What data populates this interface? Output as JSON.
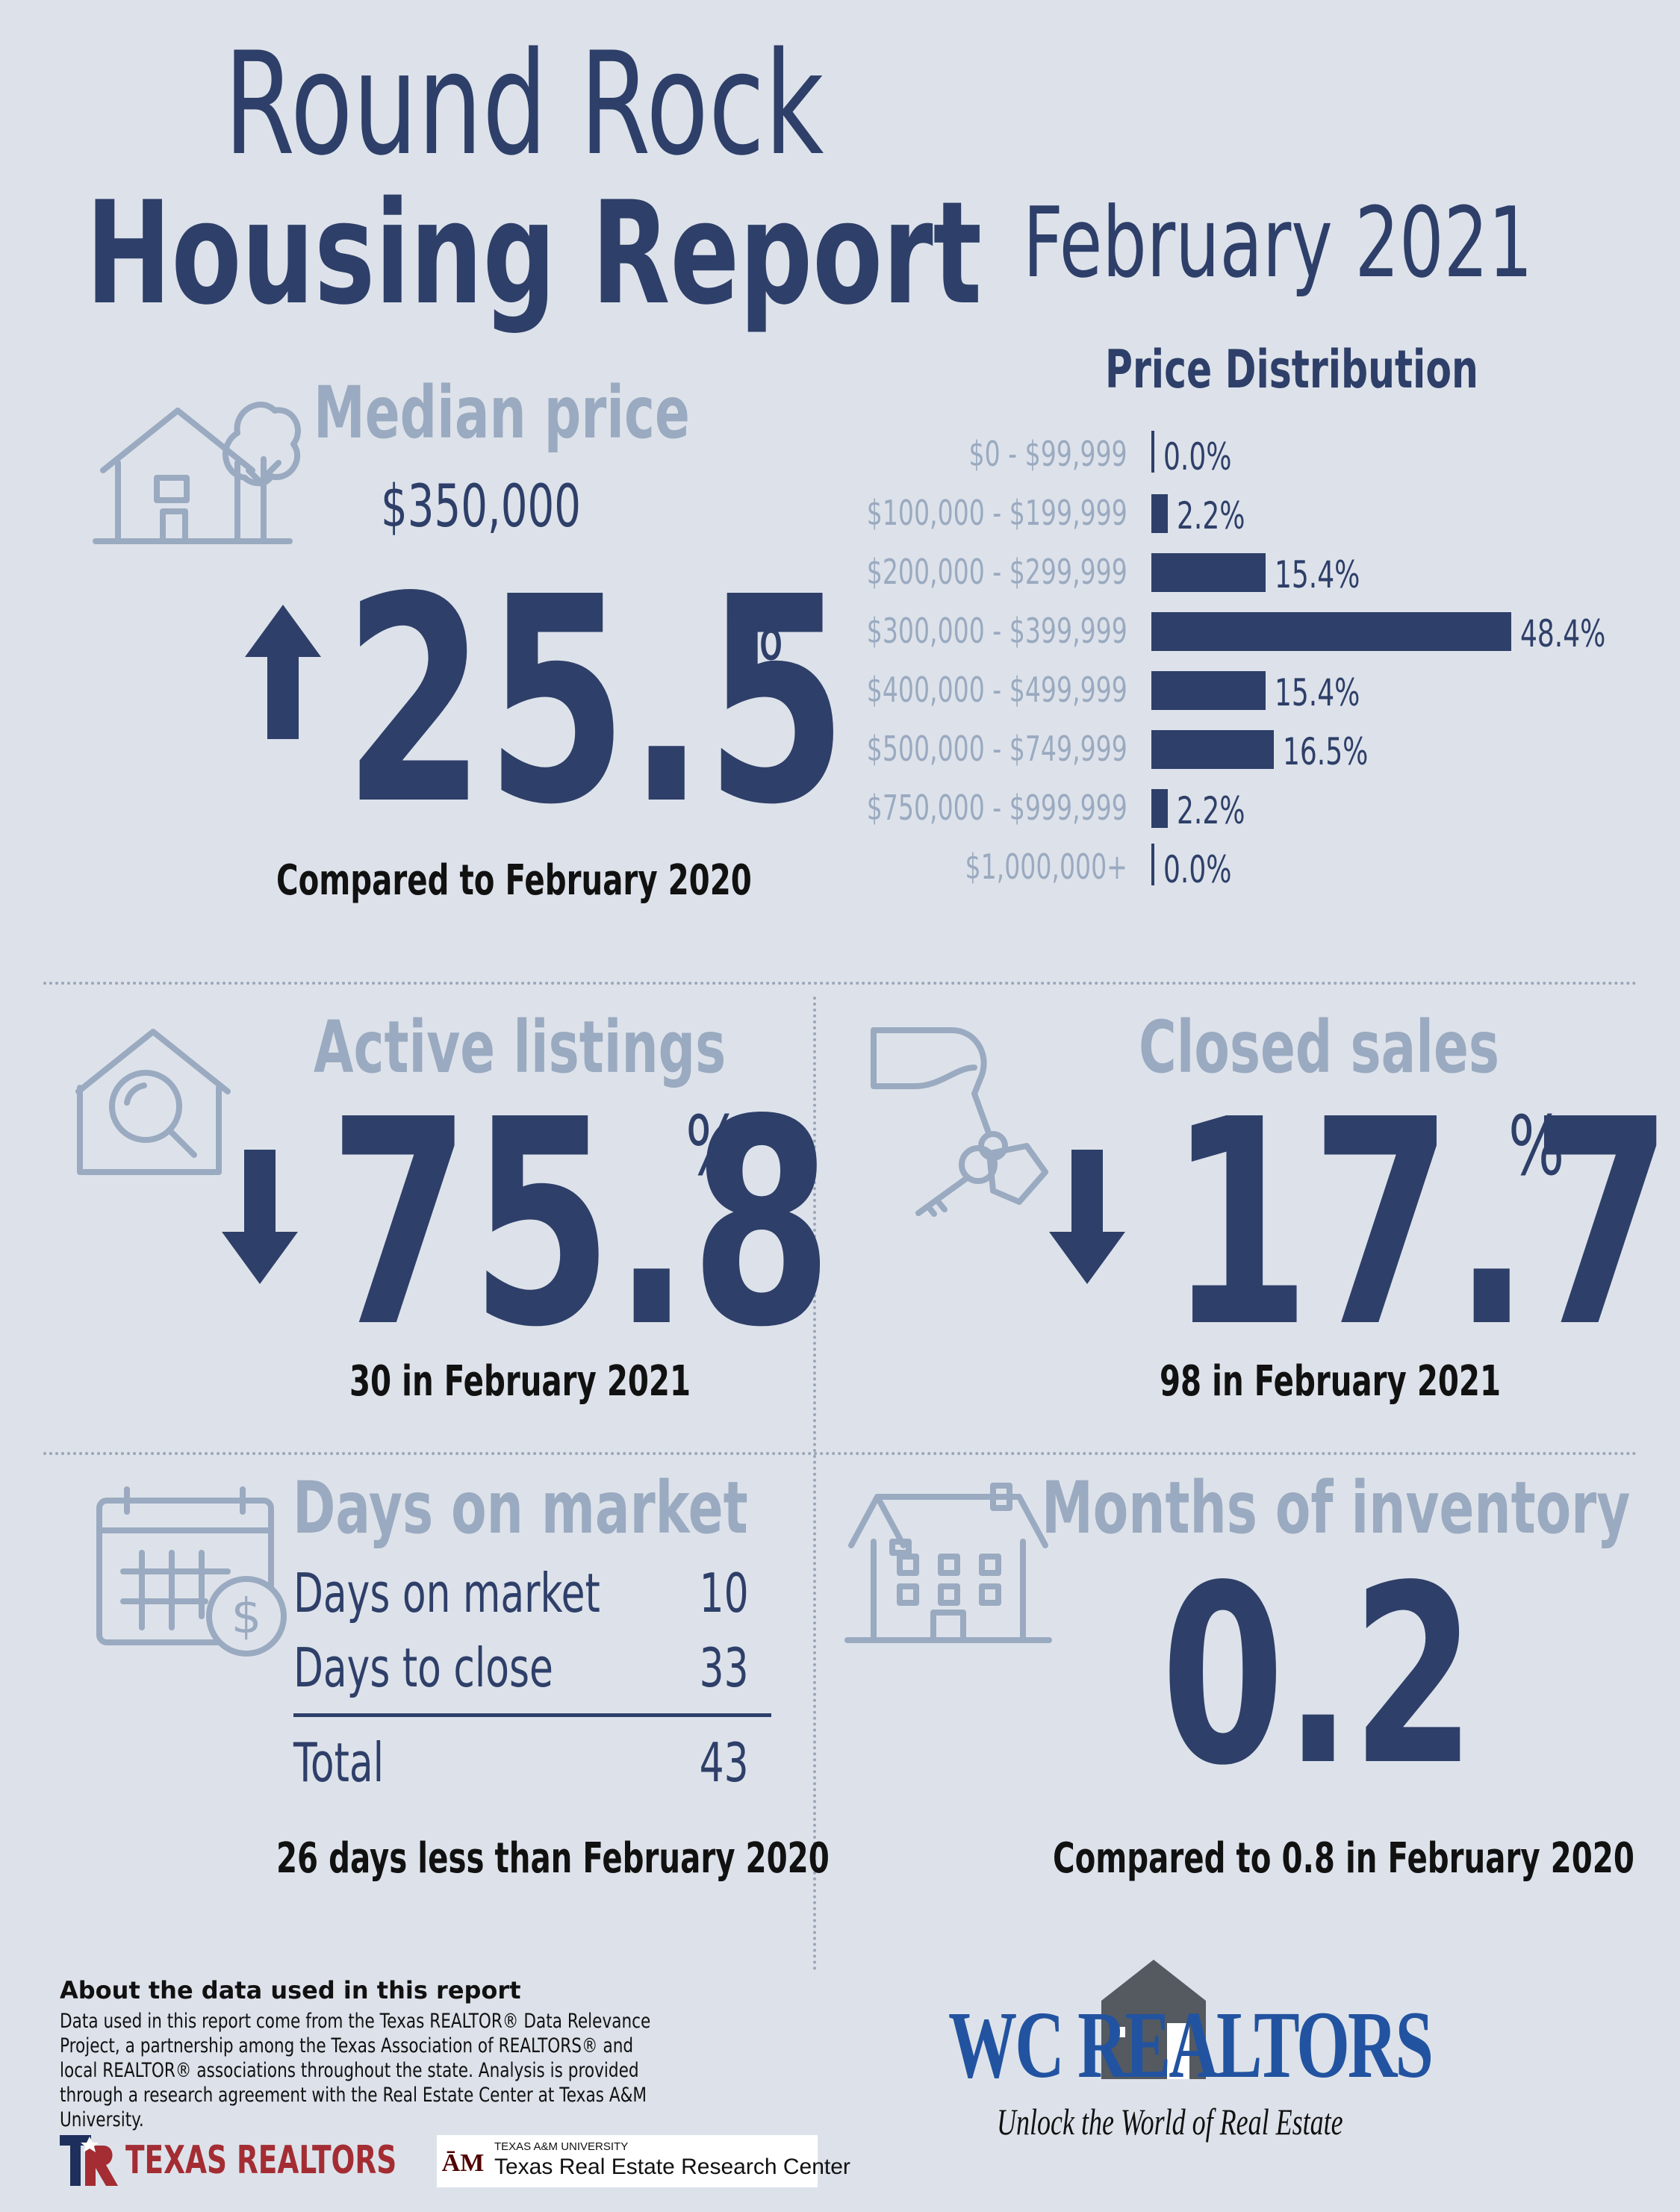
{
  "title": {
    "line1": "Round Rock",
    "line2": "Housing Report"
  },
  "report_date": "February 2021",
  "median": {
    "heading": "Median price",
    "price": "$350,000",
    "change_value": "25.5",
    "change_unit": "%",
    "direction": "up",
    "compare": "Compared to February 2020"
  },
  "chart_data": {
    "type": "bar",
    "title": "Price Distribution",
    "orientation": "horizontal",
    "categories": [
      "$0 - $99,999",
      "$100,000 - $199,999",
      "$200,000 - $299,999",
      "$300,000 - $399,999",
      "$400,000 - $499,999",
      "$500,000 - $749,999",
      "$750,000 - $999,999",
      "$1,000,000+"
    ],
    "values": [
      0.0,
      2.2,
      15.4,
      48.4,
      15.4,
      16.5,
      2.2,
      0.0
    ],
    "value_labels": [
      "0.0%",
      "2.2%",
      "15.4%",
      "48.4%",
      "15.4%",
      "16.5%",
      "2.2%",
      "0.0%"
    ],
    "color": "#2e3f69"
  },
  "active_listings": {
    "heading": "Active listings",
    "change_value": "75.8",
    "change_unit": "%",
    "direction": "down",
    "sub": "30 in February 2021"
  },
  "closed_sales": {
    "heading": "Closed sales",
    "change_value": "17.7",
    "change_unit": "%",
    "direction": "down",
    "sub": "98 in February 2021"
  },
  "days_on_market": {
    "heading": "Days on market",
    "rows": [
      {
        "label": "Days on market",
        "value": "10"
      },
      {
        "label": "Days to close",
        "value": "33"
      }
    ],
    "total": {
      "label": "Total",
      "value": "43"
    },
    "sub": "26 days less than February 2020"
  },
  "months_inventory": {
    "heading": "Months of inventory",
    "value": "0.2",
    "sub": "Compared to 0.8 in February 2020"
  },
  "about": {
    "title": "About the data used in this report",
    "text": "Data used in this report come from the Texas REALTOR® Data Relevance Project, a partnership among the Texas Association of REALTORS® and local REALTOR® associations throughout the state. Analysis is provided through a research agreement with the Real Estate Center at Texas A&M University."
  },
  "logos": {
    "texas_realtors": "TEXAS REALTORS",
    "tamu_small": "TEXAS A&M UNIVERSITY",
    "tamu_name": "Texas Real Estate Research Center",
    "wc_name": "WC REALTORS",
    "wc_tagline": "Unlock the World of Real Estate"
  },
  "colors": {
    "navy": "#2e3f69",
    "muted": "#9aaac0",
    "background": "#dde2ea",
    "texas_red": "#a32d33",
    "wc_blue": "#2253a0"
  }
}
